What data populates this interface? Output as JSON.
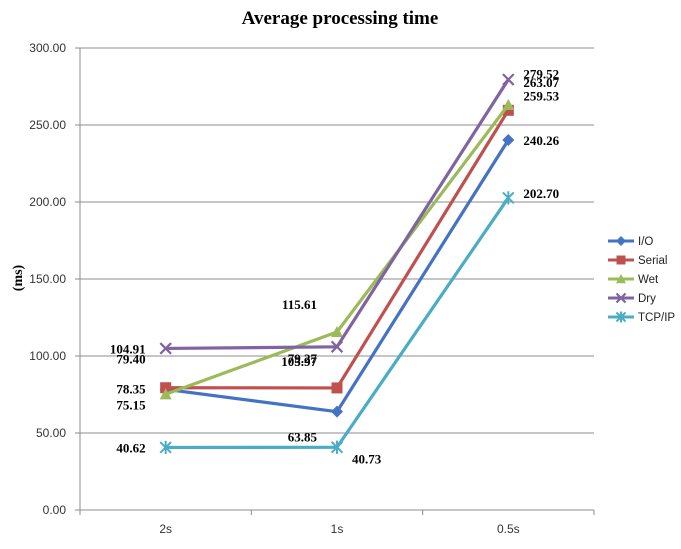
{
  "chart_data": {
    "type": "line",
    "title": "Average processing time",
    "xlabel": "",
    "ylabel": "(ms)",
    "categories": [
      "2s",
      "1s",
      "0.5s"
    ],
    "ylim": [
      0,
      300
    ],
    "yticks": [
      "0.00",
      "50.00",
      "100.00",
      "150.00",
      "200.00",
      "250.00",
      "300.00"
    ],
    "grid": true,
    "legend_position": "right",
    "series": [
      {
        "name": "I/O",
        "color": "#4472C4",
        "marker": "diamond",
        "values": [
          78.35,
          63.85,
          240.26
        ],
        "labels": [
          "78.35",
          "63.85",
          "240.26"
        ]
      },
      {
        "name": "Serial",
        "color": "#C0504D",
        "marker": "square",
        "values": [
          79.4,
          79.27,
          259.53
        ],
        "labels": [
          "79.40",
          "79.27",
          "259.53"
        ]
      },
      {
        "name": "Wet",
        "color": "#9BBB59",
        "marker": "triangle",
        "values": [
          75.15,
          115.61,
          263.07
        ],
        "labels": [
          "75.15",
          "115.61",
          "263.07"
        ]
      },
      {
        "name": "Dry",
        "color": "#8064A2",
        "marker": "x",
        "values": [
          104.91,
          105.97,
          279.52
        ],
        "labels": [
          "104.91",
          "105.97",
          "279.52"
        ]
      },
      {
        "name": "TCP/IP",
        "color": "#4BACC6",
        "marker": "star",
        "values": [
          40.62,
          40.73,
          202.7
        ],
        "labels": [
          "40.62",
          "40.73",
          "202.70"
        ]
      }
    ]
  }
}
